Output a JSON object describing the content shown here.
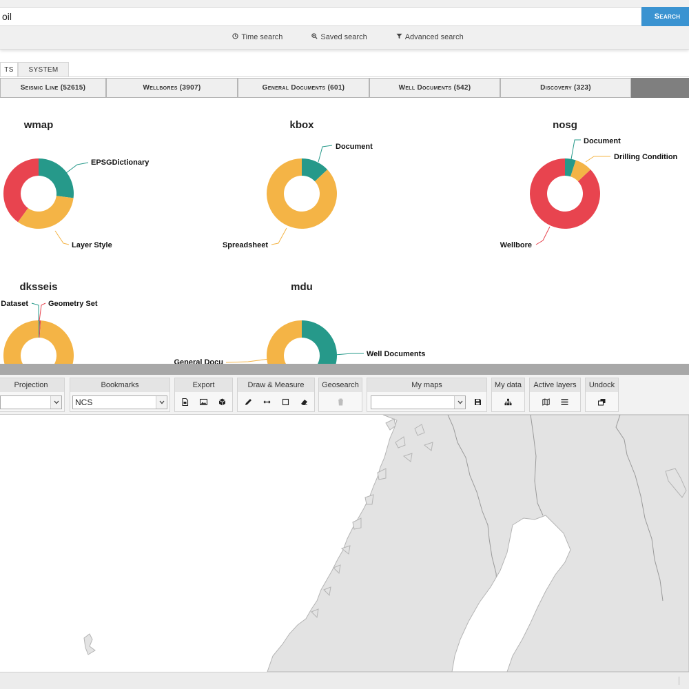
{
  "search": {
    "value": "oil",
    "button_label": "Search",
    "links": [
      {
        "label": "Time search",
        "icon": "clock-icon"
      },
      {
        "label": "Saved search",
        "icon": "search-icon"
      },
      {
        "label": "Advanced search",
        "icon": "filter-icon"
      }
    ]
  },
  "tabs": [
    {
      "label": "TS",
      "active": true
    },
    {
      "label": "SYSTEM",
      "active": false
    }
  ],
  "categories": [
    "Seismic Line (52615)",
    "Wellbores (3907)",
    "General Documents (601)",
    "Well Documents (542)",
    "Discovery (323)"
  ],
  "colors": {
    "red": "#e8444f",
    "teal": "#26998a",
    "yellow": "#f4b446",
    "search_blue": "#3a93d1"
  },
  "chart_data": [
    {
      "type": "pie",
      "title": "wmap",
      "labels": [
        "EPSGDictionary",
        "Layer Style",
        ""
      ],
      "values": [
        27,
        33,
        40
      ],
      "colors": [
        "#26998a",
        "#f4b446",
        "#e8444f"
      ]
    },
    {
      "type": "pie",
      "title": "kbox",
      "labels": [
        "Document",
        "Spreadsheet"
      ],
      "values": [
        13,
        87
      ],
      "colors": [
        "#26998a",
        "#f4b446"
      ]
    },
    {
      "type": "pie",
      "title": "nosg",
      "labels": [
        "Document",
        "Drilling Condition",
        "Wellbore"
      ],
      "values": [
        5,
        8,
        87
      ],
      "colors": [
        "#26998a",
        "#f4b446",
        "#e8444f"
      ]
    },
    {
      "type": "pie",
      "title": "dksseis",
      "labels": [
        "Dataset",
        "Geometry Set",
        ""
      ],
      "values": [
        0.5,
        0.5,
        99
      ],
      "colors": [
        "#26998a",
        "#e8444f",
        "#f4b446"
      ]
    },
    {
      "type": "pie",
      "title": "mdu",
      "labels": [
        "Well Documents",
        "General Docu"
      ],
      "values": [
        35,
        65
      ],
      "colors": [
        "#26998a",
        "#f4b446"
      ]
    }
  ],
  "toolbar": {
    "projection": {
      "title": "Projection",
      "value": ""
    },
    "bookmarks": {
      "title": "Bookmarks",
      "value": "NCS"
    },
    "export": {
      "title": "Export",
      "icons": [
        "export-pdf-icon",
        "export-image-icon",
        "export-3d-icon"
      ]
    },
    "draw": {
      "title": "Draw & Measure",
      "icons": [
        "pencil-icon",
        "measure-icon",
        "rectangle-icon",
        "eraser-icon"
      ]
    },
    "geosearch": {
      "title": "Geosearch",
      "icons": [
        "trash-icon"
      ]
    },
    "mymaps": {
      "title": "My maps",
      "value": "",
      "icons": [
        "save-icon"
      ]
    },
    "mydata": {
      "title": "My data",
      "icons": [
        "hierarchy-icon"
      ]
    },
    "layers": {
      "title": "Active layers",
      "icons": [
        "map-icon",
        "list-icon"
      ]
    },
    "undock": {
      "title": "Undock",
      "icons": [
        "undock-icon"
      ]
    }
  }
}
